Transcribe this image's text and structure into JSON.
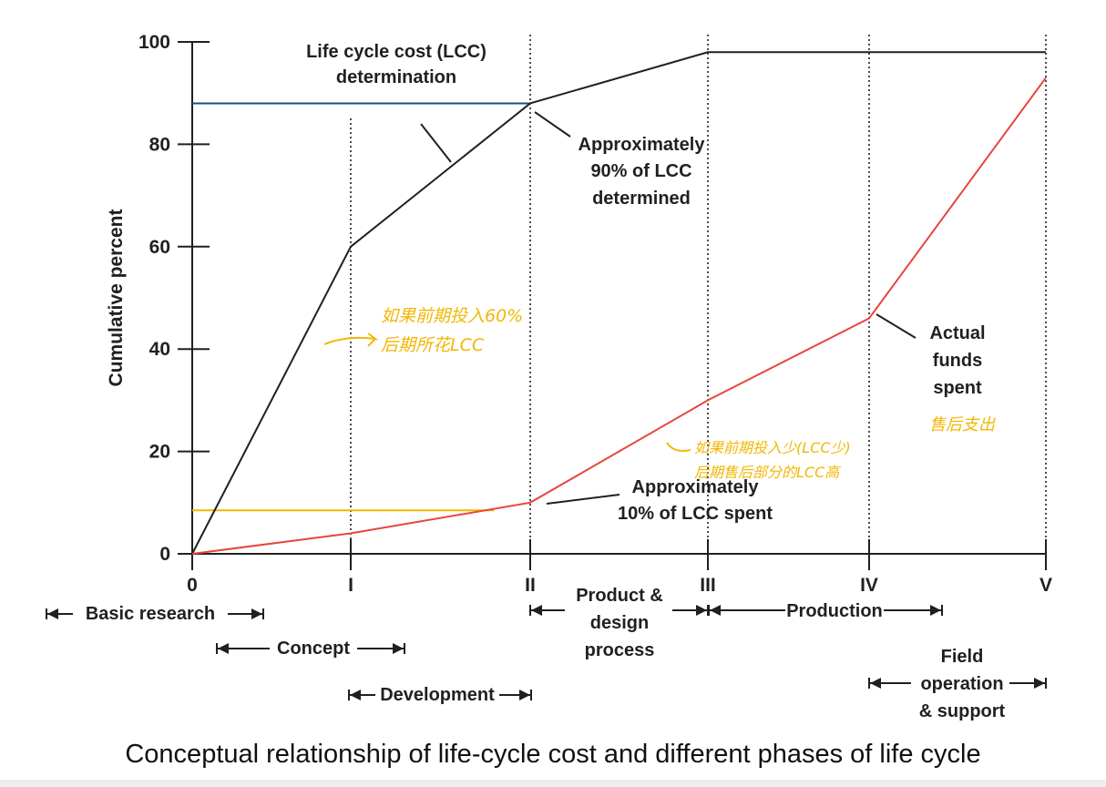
{
  "chart_data": {
    "type": "line",
    "ylabel": "Cumulative percent",
    "ylim": [
      0,
      100
    ],
    "y_ticks": [
      "0",
      "20",
      "40",
      "60",
      "80",
      "100"
    ],
    "x_ticks": [
      "0",
      "I",
      "II",
      "III",
      "IV",
      "V"
    ],
    "series": [
      {
        "name": "Life cycle cost (LCC) determination",
        "color": "#231f20",
        "x": [
          0,
          1,
          2,
          3,
          4,
          5
        ],
        "values": [
          0,
          60,
          88,
          98,
          98,
          98
        ]
      },
      {
        "name": "Actual funds spent",
        "color": "#e8453c",
        "x": [
          0,
          1,
          2,
          3,
          4,
          5
        ],
        "values": [
          0,
          4,
          10,
          30,
          46,
          93
        ]
      }
    ],
    "reference_lines": [
      {
        "color": "#1f4e79",
        "y": 88,
        "x_from": 0,
        "x_to": 2
      },
      {
        "color": "#f2b705",
        "y": 8.5,
        "x_from": 0,
        "x_to": 1.8
      }
    ],
    "annotations": {
      "lcc_title_1": "Life cycle cost (LCC)",
      "lcc_title_2": "determination",
      "approx90_1": "Approximately",
      "approx90_2": "90% of LCC",
      "approx90_3": "determined",
      "approx10_1": "Approximately",
      "approx10_2": "10% of LCC spent",
      "funds_1": "Actual",
      "funds_2": "funds",
      "funds_3": "spent"
    },
    "phases": {
      "basic_research": "Basic research",
      "concept": "Concept",
      "development": "Development",
      "product_1": "Product &",
      "product_2": "design",
      "product_3": "process",
      "production": "Production",
      "field_1": "Field",
      "field_2": "operation",
      "field_3": "& support"
    },
    "handwritten": {
      "note_a_1": "如果前期投入60%",
      "note_a_2": "后期所花LCC",
      "note_b_1": "如果前期投入少(LCC少)",
      "note_b_2": "后期售后部分的LCC高",
      "note_c": "售后支出"
    }
  },
  "caption": "Conceptual relationship of life-cycle cost and different phases of life cycle"
}
